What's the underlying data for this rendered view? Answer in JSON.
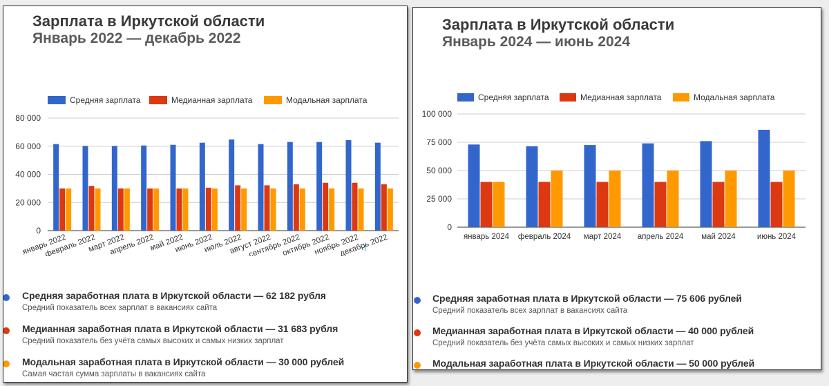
{
  "colors": {
    "avg": "#3366cc",
    "median": "#dc3912",
    "modal": "#ff9900",
    "grid": "#cccccc",
    "axis_text": "#333333"
  },
  "left": {
    "title": "Зарплата в Иркутской области",
    "subtitle": "Январь 2022 — декабрь 2022",
    "legend_items": [
      {
        "title": "Средняя заработная плата в Иркутской области — 62 182 рубля",
        "desc": "Средний показатель всех зарплат в вакансиях сайта"
      },
      {
        "title": "Медианная заработная плата в Иркутской области — 31 683 рубля",
        "desc": "Средний показатель без учёта самых высоких и самых низких зарплат"
      },
      {
        "title": "Модальная заработная плата в Иркутской области — 30 000 рублей",
        "desc": "Самая частая сумма зарплаты в вакансиях сайта"
      }
    ]
  },
  "right": {
    "title": "Зарплата в Иркутской области",
    "subtitle": "Январь 2024 — июнь 2024",
    "legend_items": [
      {
        "title": "Средняя заработная плата в Иркутской области — 75 606 рублей",
        "desc": "Средний показатель всех зарплат в вакансиях сайта"
      },
      {
        "title": "Медианная заработная плата в Иркутской области — 40 000 рублей",
        "desc": "Средний показатель без учёта самых высоких и самых низких зарплат"
      },
      {
        "title": "Модальная заработная плата в Иркутской области — 50 000 рублей",
        "desc": ""
      }
    ]
  },
  "chart_data": [
    {
      "type": "bar",
      "title": "Зарплата в Иркутской области",
      "subtitle": "Январь 2022 — декабрь 2022",
      "categories": [
        "январь 2022",
        "февраль 2022",
        "март 2022",
        "апрель 2022",
        "май 2022",
        "июнь 2022",
        "июль 2022",
        "август 2022",
        "сентябрь 2022",
        "октябрь 2022",
        "ноябрь 2022",
        "декабрь 2022"
      ],
      "series": [
        {
          "name": "Средняя зарплата",
          "values": [
            61500,
            60200,
            60200,
            60500,
            61000,
            62500,
            64800,
            61500,
            63000,
            63000,
            64300,
            62500
          ]
        },
        {
          "name": "Медианная зарплата",
          "values": [
            30000,
            31800,
            30000,
            30000,
            30000,
            30500,
            32200,
            32200,
            33000,
            34000,
            34000,
            33000
          ]
        },
        {
          "name": "Модальная зарплата",
          "values": [
            30000,
            30000,
            30000,
            30000,
            30000,
            30000,
            30000,
            30000,
            30000,
            30000,
            30000,
            30000
          ]
        }
      ],
      "yticks": [
        "0",
        "20 000",
        "40 000",
        "60 000",
        "80 000"
      ],
      "ylim": [
        0,
        80000
      ],
      "legend_position": "top",
      "grid": true,
      "xlabel": "",
      "ylabel": ""
    },
    {
      "type": "bar",
      "title": "Зарплата в Иркутской области",
      "subtitle": "Январь 2024 — июнь 2024",
      "categories": [
        "январь 2024",
        "февраль 2024",
        "март 2024",
        "апрель 2024",
        "май 2024",
        "июнь 2024"
      ],
      "series": [
        {
          "name": "Средняя зарплата",
          "values": [
            73000,
            71500,
            72500,
            74000,
            76000,
            86000
          ]
        },
        {
          "name": "Медианная зарплата",
          "values": [
            40000,
            40000,
            40000,
            40000,
            40000,
            40000
          ]
        },
        {
          "name": "Модальная зарплата",
          "values": [
            40000,
            50000,
            50000,
            50000,
            50000,
            50000
          ]
        }
      ],
      "yticks": [
        "0",
        "25 000",
        "50 000",
        "75 000",
        "100 000"
      ],
      "ylim": [
        0,
        100000
      ],
      "legend_position": "top",
      "grid": true,
      "xlabel": "",
      "ylabel": ""
    }
  ]
}
